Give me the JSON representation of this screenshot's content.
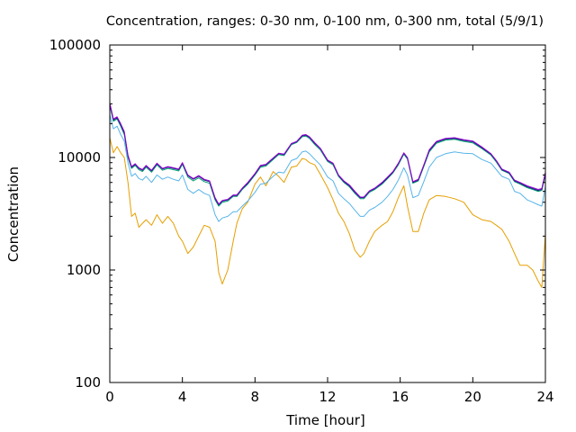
{
  "chart_data": {
    "type": "line",
    "title": "Concentration, ranges: 0-30 nm, 0-100 nm, 0-300 nm, total (5/9/1)",
    "xlabel": "Time [hour]",
    "ylabel": "Concentration",
    "xlim": [
      0,
      24
    ],
    "ylim": [
      100,
      100000
    ],
    "y_scale": "log",
    "grid": false,
    "x_ticks": [
      0,
      4,
      8,
      12,
      16,
      20,
      24
    ],
    "x_tick_labels": [
      "0",
      "4",
      "8",
      "12",
      "16",
      "20",
      "24"
    ],
    "y_ticks": [
      100,
      1000,
      10000,
      100000
    ],
    "y_tick_labels": [
      "100",
      "1000",
      "10000",
      "100000"
    ],
    "series": [
      {
        "color": "#e69f00",
        "x": [
          0,
          0.2,
          0.4,
          0.6,
          0.8,
          1.0,
          1.2,
          1.4,
          1.6,
          1.8,
          2.0,
          2.3,
          2.6,
          2.9,
          3.2,
          3.5,
          3.8,
          4.0,
          4.3,
          4.6,
          4.9,
          5.2,
          5.5,
          5.8,
          6.0,
          6.2,
          6.5,
          6.8,
          7.0,
          7.3,
          7.6,
          8.0,
          8.3,
          8.6,
          9.0,
          9.3,
          9.6,
          10.0,
          10.3,
          10.6,
          10.8,
          11.0,
          11.3,
          11.6,
          12.0,
          12.3,
          12.6,
          12.9,
          13.2,
          13.5,
          13.8,
          14.0,
          14.3,
          14.6,
          15.0,
          15.3,
          15.6,
          15.9,
          16.2,
          16.4,
          16.7,
          17.0,
          17.3,
          17.6,
          18.0,
          18.5,
          19.0,
          19.5,
          20.0,
          20.5,
          21.0,
          21.3,
          21.6,
          22.0,
          22.3,
          22.6,
          23.0,
          23.3,
          23.6,
          23.8,
          24.0
        ],
        "values": [
          15000,
          11000,
          12500,
          11000,
          10000,
          6000,
          3000,
          3200,
          2400,
          2600,
          2800,
          2500,
          3100,
          2600,
          3000,
          2600,
          2000,
          1800,
          1400,
          1600,
          2000,
          2500,
          2400,
          1800,
          950,
          750,
          1000,
          1800,
          2600,
          3500,
          4000,
          5800,
          6700,
          5600,
          7500,
          6800,
          6000,
          8200,
          8400,
          9800,
          9600,
          9000,
          8600,
          7100,
          5400,
          4200,
          3200,
          2700,
          2100,
          1500,
          1300,
          1400,
          1800,
          2200,
          2500,
          2700,
          3300,
          4400,
          5600,
          3700,
          2200,
          2200,
          3200,
          4200,
          4600,
          4500,
          4300,
          4000,
          3100,
          2800,
          2700,
          2500,
          2300,
          1800,
          1400,
          1100,
          1100,
          1000,
          800,
          700,
          2100
        ]
      },
      {
        "color": "#56b4e9",
        "x": [
          0,
          0.2,
          0.4,
          0.6,
          0.8,
          1.0,
          1.2,
          1.4,
          1.6,
          1.8,
          2.0,
          2.3,
          2.6,
          2.9,
          3.2,
          3.5,
          3.8,
          4.0,
          4.3,
          4.6,
          4.9,
          5.2,
          5.5,
          5.8,
          6.0,
          6.2,
          6.5,
          6.8,
          7.0,
          7.3,
          7.6,
          8.0,
          8.3,
          8.6,
          9.0,
          9.3,
          9.6,
          10.0,
          10.3,
          10.6,
          10.8,
          11.0,
          11.3,
          11.6,
          12.0,
          12.3,
          12.6,
          12.9,
          13.2,
          13.5,
          13.8,
          14.0,
          14.3,
          14.6,
          15.0,
          15.3,
          15.6,
          15.9,
          16.2,
          16.4,
          16.7,
          17.0,
          17.3,
          17.6,
          18.0,
          18.5,
          19.0,
          19.5,
          20.0,
          20.5,
          21.0,
          21.3,
          21.6,
          22.0,
          22.3,
          22.6,
          23.0,
          23.3,
          23.6,
          23.8,
          24.0
        ],
        "values": [
          24000,
          18000,
          19000,
          16000,
          14000,
          9000,
          6800,
          7200,
          6500,
          6300,
          6800,
          6000,
          7000,
          6400,
          6700,
          6400,
          6200,
          7000,
          5200,
          4800,
          5200,
          4800,
          4600,
          3100,
          2700,
          2900,
          3000,
          3300,
          3300,
          3700,
          4100,
          4900,
          5800,
          5900,
          6800,
          7400,
          7300,
          9400,
          9800,
          11200,
          11400,
          10800,
          9600,
          8600,
          6700,
          6200,
          4800,
          4300,
          3900,
          3400,
          3000,
          3000,
          3400,
          3600,
          4000,
          4500,
          5200,
          6300,
          8100,
          7000,
          4400,
          4600,
          6100,
          8200,
          10000,
          10800,
          11200,
          10900,
          10800,
          9600,
          8900,
          7800,
          6800,
          6400,
          5000,
          4800,
          4200,
          4000,
          3800,
          3700,
          5500
        ]
      },
      {
        "color": "#009e73",
        "x": [
          0,
          0.2,
          0.4,
          0.6,
          0.8,
          1.0,
          1.2,
          1.4,
          1.6,
          1.8,
          2.0,
          2.3,
          2.6,
          2.9,
          3.2,
          3.5,
          3.8,
          4.0,
          4.3,
          4.6,
          4.9,
          5.2,
          5.5,
          5.8,
          6.0,
          6.2,
          6.5,
          6.8,
          7.0,
          7.3,
          7.6,
          8.0,
          8.3,
          8.6,
          9.0,
          9.3,
          9.6,
          10.0,
          10.3,
          10.6,
          10.8,
          11.0,
          11.3,
          11.6,
          12.0,
          12.3,
          12.6,
          12.9,
          13.2,
          13.5,
          13.8,
          14.0,
          14.3,
          14.6,
          15.0,
          15.3,
          15.6,
          15.9,
          16.2,
          16.4,
          16.7,
          17.0,
          17.3,
          17.6,
          18.0,
          18.5,
          19.0,
          19.5,
          20.0,
          20.5,
          21.0,
          21.3,
          21.6,
          22.0,
          22.3,
          22.6,
          23.0,
          23.3,
          23.6,
          23.8,
          24.0
        ],
        "values": [
          29000,
          21000,
          22000,
          19000,
          16000,
          10000,
          8000,
          8500,
          7800,
          7500,
          8200,
          7400,
          8600,
          7700,
          8000,
          7800,
          7600,
          8700,
          6700,
          6200,
          6600,
          6100,
          5900,
          4200,
          3700,
          4000,
          4100,
          4500,
          4500,
          5200,
          5800,
          7000,
          8200,
          8400,
          9600,
          10600,
          10400,
          13000,
          13600,
          15300,
          15500,
          14800,
          13000,
          11700,
          9200,
          8600,
          6800,
          6000,
          5500,
          4800,
          4300,
          4300,
          4900,
          5200,
          5800,
          6500,
          7300,
          8600,
          10700,
          9700,
          5900,
          6200,
          8300,
          11200,
          13400,
          14300,
          14500,
          13900,
          13500,
          12000,
          10500,
          9100,
          7700,
          7200,
          6100,
          5800,
          5400,
          5200,
          5000,
          5100,
          7100
        ]
      },
      {
        "color": "#1a237e",
        "x": [
          0,
          0.2,
          0.4,
          0.6,
          0.8,
          1.0,
          1.2,
          1.4,
          1.6,
          1.8,
          2.0,
          2.3,
          2.6,
          2.9,
          3.2,
          3.5,
          3.8,
          4.0,
          4.3,
          4.6,
          4.9,
          5.2,
          5.5,
          5.8,
          6.0,
          6.2,
          6.5,
          6.8,
          7.0,
          7.3,
          7.6,
          8.0,
          8.3,
          8.6,
          9.0,
          9.3,
          9.6,
          10.0,
          10.3,
          10.6,
          10.8,
          11.0,
          11.3,
          11.6,
          12.0,
          12.3,
          12.6,
          12.9,
          13.2,
          13.5,
          13.8,
          14.0,
          14.3,
          14.6,
          15.0,
          15.3,
          15.6,
          15.9,
          16.2,
          16.4,
          16.7,
          17.0,
          17.3,
          17.6,
          18.0,
          18.5,
          19.0,
          19.5,
          20.0,
          20.5,
          21.0,
          21.3,
          21.6,
          22.0,
          22.3,
          22.6,
          23.0,
          23.3,
          23.6,
          23.8,
          24.0
        ],
        "values": [
          30000,
          21500,
          22500,
          19500,
          16500,
          10300,
          8200,
          8700,
          8000,
          7700,
          8400,
          7600,
          8800,
          7900,
          8200,
          8000,
          7800,
          8900,
          6900,
          6400,
          6800,
          6300,
          6100,
          4300,
          3800,
          4100,
          4200,
          4600,
          4600,
          5300,
          5900,
          7100,
          8400,
          8600,
          9800,
          10800,
          10600,
          13200,
          13800,
          15600,
          15800,
          15100,
          13300,
          12000,
          9400,
          8800,
          6900,
          6100,
          5600,
          4900,
          4400,
          4400,
          5000,
          5300,
          5900,
          6600,
          7400,
          8800,
          10900,
          9900,
          6000,
          6300,
          8500,
          11500,
          13700,
          14600,
          14800,
          14200,
          13800,
          12200,
          10700,
          9300,
          7800,
          7300,
          6200,
          5900,
          5500,
          5300,
          5100,
          5200,
          7300
        ]
      },
      {
        "color": "#9400d3",
        "x": [
          0,
          0.2,
          0.4,
          0.6,
          0.8,
          1.0,
          1.2,
          1.4,
          1.6,
          1.8,
          2.0,
          2.3,
          2.6,
          2.9,
          3.2,
          3.5,
          3.8,
          4.0,
          4.3,
          4.6,
          4.9,
          5.2,
          5.5,
          5.8,
          6.0,
          6.2,
          6.5,
          6.8,
          7.0,
          7.3,
          7.6,
          8.0,
          8.3,
          8.6,
          9.0,
          9.3,
          9.6,
          10.0,
          10.3,
          10.6,
          10.8,
          11.0,
          11.3,
          11.6,
          12.0,
          12.3,
          12.6,
          12.9,
          13.2,
          13.5,
          13.8,
          14.0,
          14.3,
          14.6,
          15.0,
          15.3,
          15.6,
          15.9,
          16.2,
          16.4,
          16.7,
          17.0,
          17.3,
          17.6,
          18.0,
          18.5,
          19.0,
          19.5,
          20.0,
          20.5,
          21.0,
          21.3,
          21.6,
          22.0,
          22.3,
          22.6,
          23.0,
          23.3,
          23.6,
          23.8,
          24.0
        ],
        "values": [
          30500,
          22000,
          23000,
          20000,
          17000,
          10500,
          8300,
          8800,
          8100,
          7800,
          8500,
          7700,
          8900,
          8000,
          8300,
          8100,
          7900,
          9000,
          7000,
          6500,
          6900,
          6400,
          6200,
          4400,
          3850,
          4150,
          4250,
          4650,
          4650,
          5350,
          6000,
          7200,
          8500,
          8700,
          9900,
          10900,
          10700,
          13300,
          13900,
          15800,
          16000,
          15300,
          13500,
          12100,
          9500,
          8900,
          7000,
          6200,
          5700,
          5000,
          4450,
          4450,
          5050,
          5350,
          6000,
          6700,
          7500,
          8900,
          11000,
          10000,
          6100,
          6400,
          8600,
          11700,
          13900,
          14800,
          15000,
          14400,
          14000,
          12400,
          10800,
          9400,
          7900,
          7400,
          6300,
          6000,
          5600,
          5400,
          5200,
          5300,
          7400
        ]
      }
    ]
  }
}
